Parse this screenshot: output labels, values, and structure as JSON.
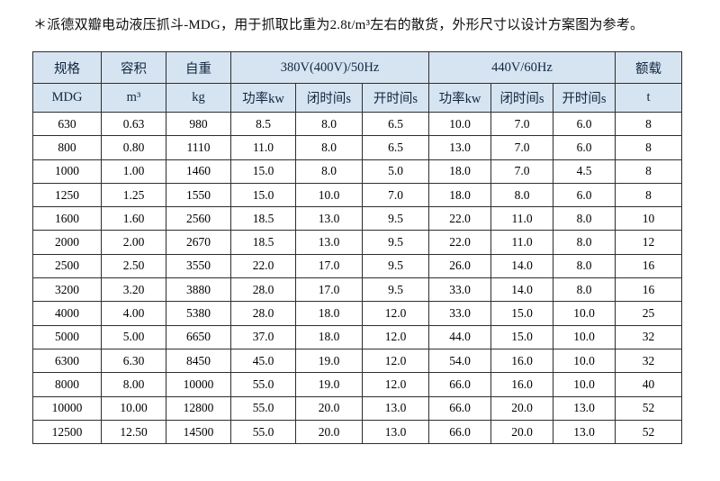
{
  "title": "＊派德双瓣电动液压抓斗-MDG，用于抓取比重为2.8t/m³左右的散货，外形尺寸以设计方案图为参考。",
  "colors": {
    "header_bg": "#d6e4f2",
    "header_text": "#10263f",
    "body_text": "#000000",
    "border": "#2e2e2e"
  },
  "table": {
    "header_row1": [
      "规格",
      "容积",
      "自重",
      "380V(400V)/50Hz",
      "440V/60Hz",
      "额载"
    ],
    "header_row2": [
      "MDG",
      "m³",
      "kg",
      "功率kw",
      "闭时间s",
      "开时间s",
      "功率kw",
      "闭时间s",
      "开时间s",
      "t"
    ],
    "rows": [
      [
        "630",
        "0.63",
        "980",
        "8.5",
        "8.0",
        "6.5",
        "10.0",
        "7.0",
        "6.0",
        "8"
      ],
      [
        "800",
        "0.80",
        "1110",
        "11.0",
        "8.0",
        "6.5",
        "13.0",
        "7.0",
        "6.0",
        "8"
      ],
      [
        "1000",
        "1.00",
        "1460",
        "15.0",
        "8.0",
        "5.0",
        "18.0",
        "7.0",
        "4.5",
        "8"
      ],
      [
        "1250",
        "1.25",
        "1550",
        "15.0",
        "10.0",
        "7.0",
        "18.0",
        "8.0",
        "6.0",
        "8"
      ],
      [
        "1600",
        "1.60",
        "2560",
        "18.5",
        "13.0",
        "9.5",
        "22.0",
        "11.0",
        "8.0",
        "10"
      ],
      [
        "2000",
        "2.00",
        "2670",
        "18.5",
        "13.0",
        "9.5",
        "22.0",
        "11.0",
        "8.0",
        "12"
      ],
      [
        "2500",
        "2.50",
        "3550",
        "22.0",
        "17.0",
        "9.5",
        "26.0",
        "14.0",
        "8.0",
        "16"
      ],
      [
        "3200",
        "3.20",
        "3880",
        "28.0",
        "17.0",
        "9.5",
        "33.0",
        "14.0",
        "8.0",
        "16"
      ],
      [
        "4000",
        "4.00",
        "5380",
        "28.0",
        "18.0",
        "12.0",
        "33.0",
        "15.0",
        "10.0",
        "25"
      ],
      [
        "5000",
        "5.00",
        "6650",
        "37.0",
        "18.0",
        "12.0",
        "44.0",
        "15.0",
        "10.0",
        "32"
      ],
      [
        "6300",
        "6.30",
        "8450",
        "45.0",
        "19.0",
        "12.0",
        "54.0",
        "16.0",
        "10.0",
        "32"
      ],
      [
        "8000",
        "8.00",
        "10000",
        "55.0",
        "19.0",
        "12.0",
        "66.0",
        "16.0",
        "10.0",
        "40"
      ],
      [
        "10000",
        "10.00",
        "12800",
        "55.0",
        "20.0",
        "13.0",
        "66.0",
        "20.0",
        "13.0",
        "52"
      ],
      [
        "12500",
        "12.50",
        "14500",
        "55.0",
        "20.0",
        "13.0",
        "66.0",
        "20.0",
        "13.0",
        "52"
      ]
    ]
  }
}
